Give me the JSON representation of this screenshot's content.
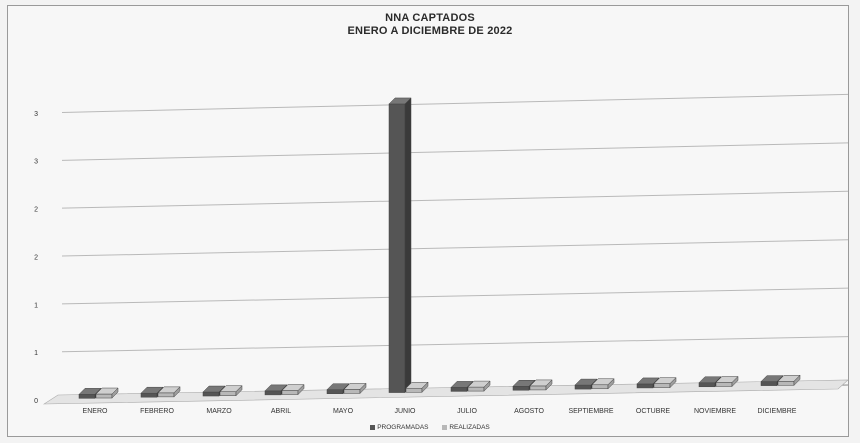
{
  "chart_data": {
    "type": "bar",
    "title": "NNA CAPTADOS",
    "subtitle": "ENERO A DICIEMBRE DE 2022",
    "categories": [
      "ENERO",
      "FEBRERO",
      "MARZO",
      "ABRIL",
      "MAYO",
      "JUNIO",
      "JULIO",
      "AGOSTO",
      "SEPTIEMBRE",
      "OCTUBRE",
      "NOVIEMBRE",
      "DICIEMBRE"
    ],
    "series": [
      {
        "name": "PROGRAMADAS",
        "values": [
          0,
          0,
          0,
          0,
          0,
          3,
          0,
          0,
          0,
          0,
          0,
          0
        ]
      },
      {
        "name": "REALIZADAS",
        "values": [
          0,
          0,
          0,
          0,
          0,
          0,
          0,
          0,
          0,
          0,
          0,
          0
        ]
      }
    ],
    "ytick_labels": [
      "0",
      "1",
      "1",
      "2",
      "2",
      "3",
      "3"
    ],
    "ylim": [
      0,
      3.5
    ],
    "grid": true,
    "legend": "bottom",
    "colors": {
      "PROGRAMADAS": "#555555",
      "REALIZADAS": "#b8b8b8"
    }
  }
}
